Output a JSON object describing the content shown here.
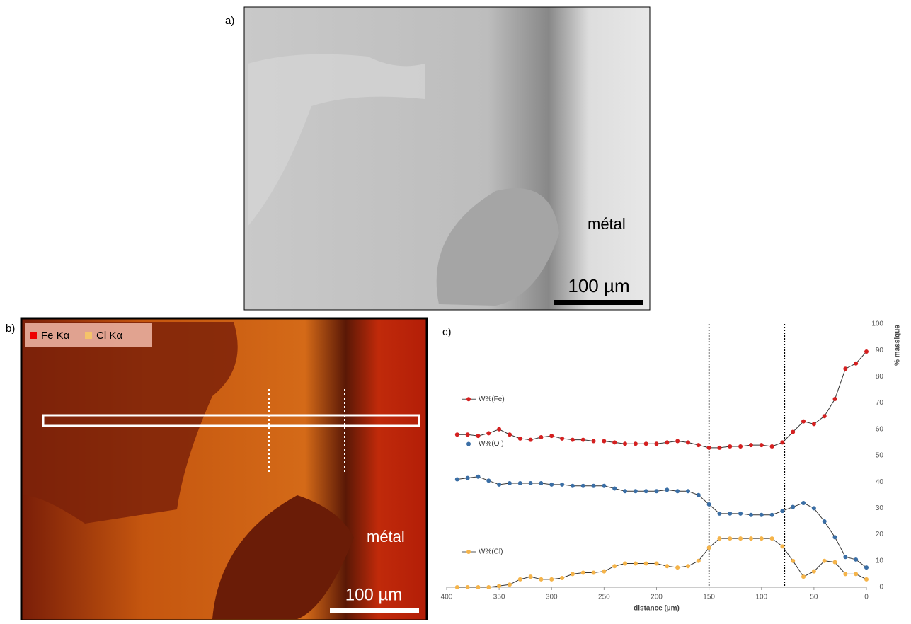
{
  "panels": {
    "a": {
      "label": "a)",
      "annotation": "métal",
      "scale": "100 µm"
    },
    "b": {
      "label": "b)",
      "legend": [
        "Fe Kα",
        "Cl Kα"
      ],
      "annotation": "métal",
      "scale": "100 µm"
    },
    "c": {
      "label": "c)"
    }
  },
  "chart_data": {
    "type": "line",
    "x": [
      390,
      380,
      370,
      360,
      350,
      340,
      330,
      320,
      310,
      300,
      290,
      280,
      270,
      260,
      250,
      240,
      230,
      220,
      210,
      200,
      190,
      180,
      170,
      160,
      150,
      140,
      130,
      120,
      110,
      100,
      90,
      80,
      70,
      60,
      50,
      40,
      30,
      20,
      10,
      0
    ],
    "series": [
      {
        "name": "W%(Fe)",
        "color": "#d42020",
        "values": [
          58,
          58,
          57.5,
          58.5,
          60,
          58,
          56.5,
          56,
          57,
          57.5,
          56.5,
          56,
          56,
          55.5,
          55.5,
          55,
          54.5,
          54.5,
          54.5,
          54.5,
          55,
          55.5,
          55,
          54,
          53,
          53,
          53.5,
          53.5,
          54,
          54,
          53.5,
          55,
          59,
          63,
          62,
          65,
          71.5,
          83,
          85,
          89.5
        ]
      },
      {
        "name": "W%(O )",
        "color": "#3a6ea5",
        "values": [
          41,
          41.5,
          42,
          40.5,
          39,
          39.5,
          39.5,
          39.5,
          39.5,
          39,
          39,
          38.5,
          38.5,
          38.5,
          38.5,
          37.5,
          36.5,
          36.5,
          36.5,
          36.5,
          37,
          36.5,
          36.5,
          35,
          31.5,
          28,
          28,
          28,
          27.5,
          27.5,
          27.5,
          29,
          30.5,
          32,
          30,
          25,
          19,
          11.5,
          10.5,
          7.5
        ]
      },
      {
        "name": "W%(Cl)",
        "color": "#f5b44a",
        "values": [
          0,
          0,
          0,
          0,
          0.5,
          1,
          3,
          4,
          3,
          3,
          3.5,
          5,
          5.5,
          5.5,
          6,
          8,
          9,
          9,
          9,
          9,
          8,
          7.5,
          8,
          10,
          15,
          18.5,
          18.5,
          18.5,
          18.5,
          18.5,
          18.5,
          15.5,
          10,
          4,
          6,
          10,
          9.5,
          5,
          5,
          3
        ]
      }
    ],
    "xlabel": "distance (µm)",
    "ylabel": "% massique",
    "xlim": [
      400,
      0
    ],
    "xticks": [
      400,
      350,
      300,
      250,
      200,
      150,
      100,
      50,
      0
    ],
    "ylim": [
      0,
      100
    ],
    "yticks": [
      0,
      10,
      20,
      30,
      40,
      50,
      60,
      70,
      80,
      90,
      100
    ],
    "vlines": [
      150,
      78
    ]
  }
}
